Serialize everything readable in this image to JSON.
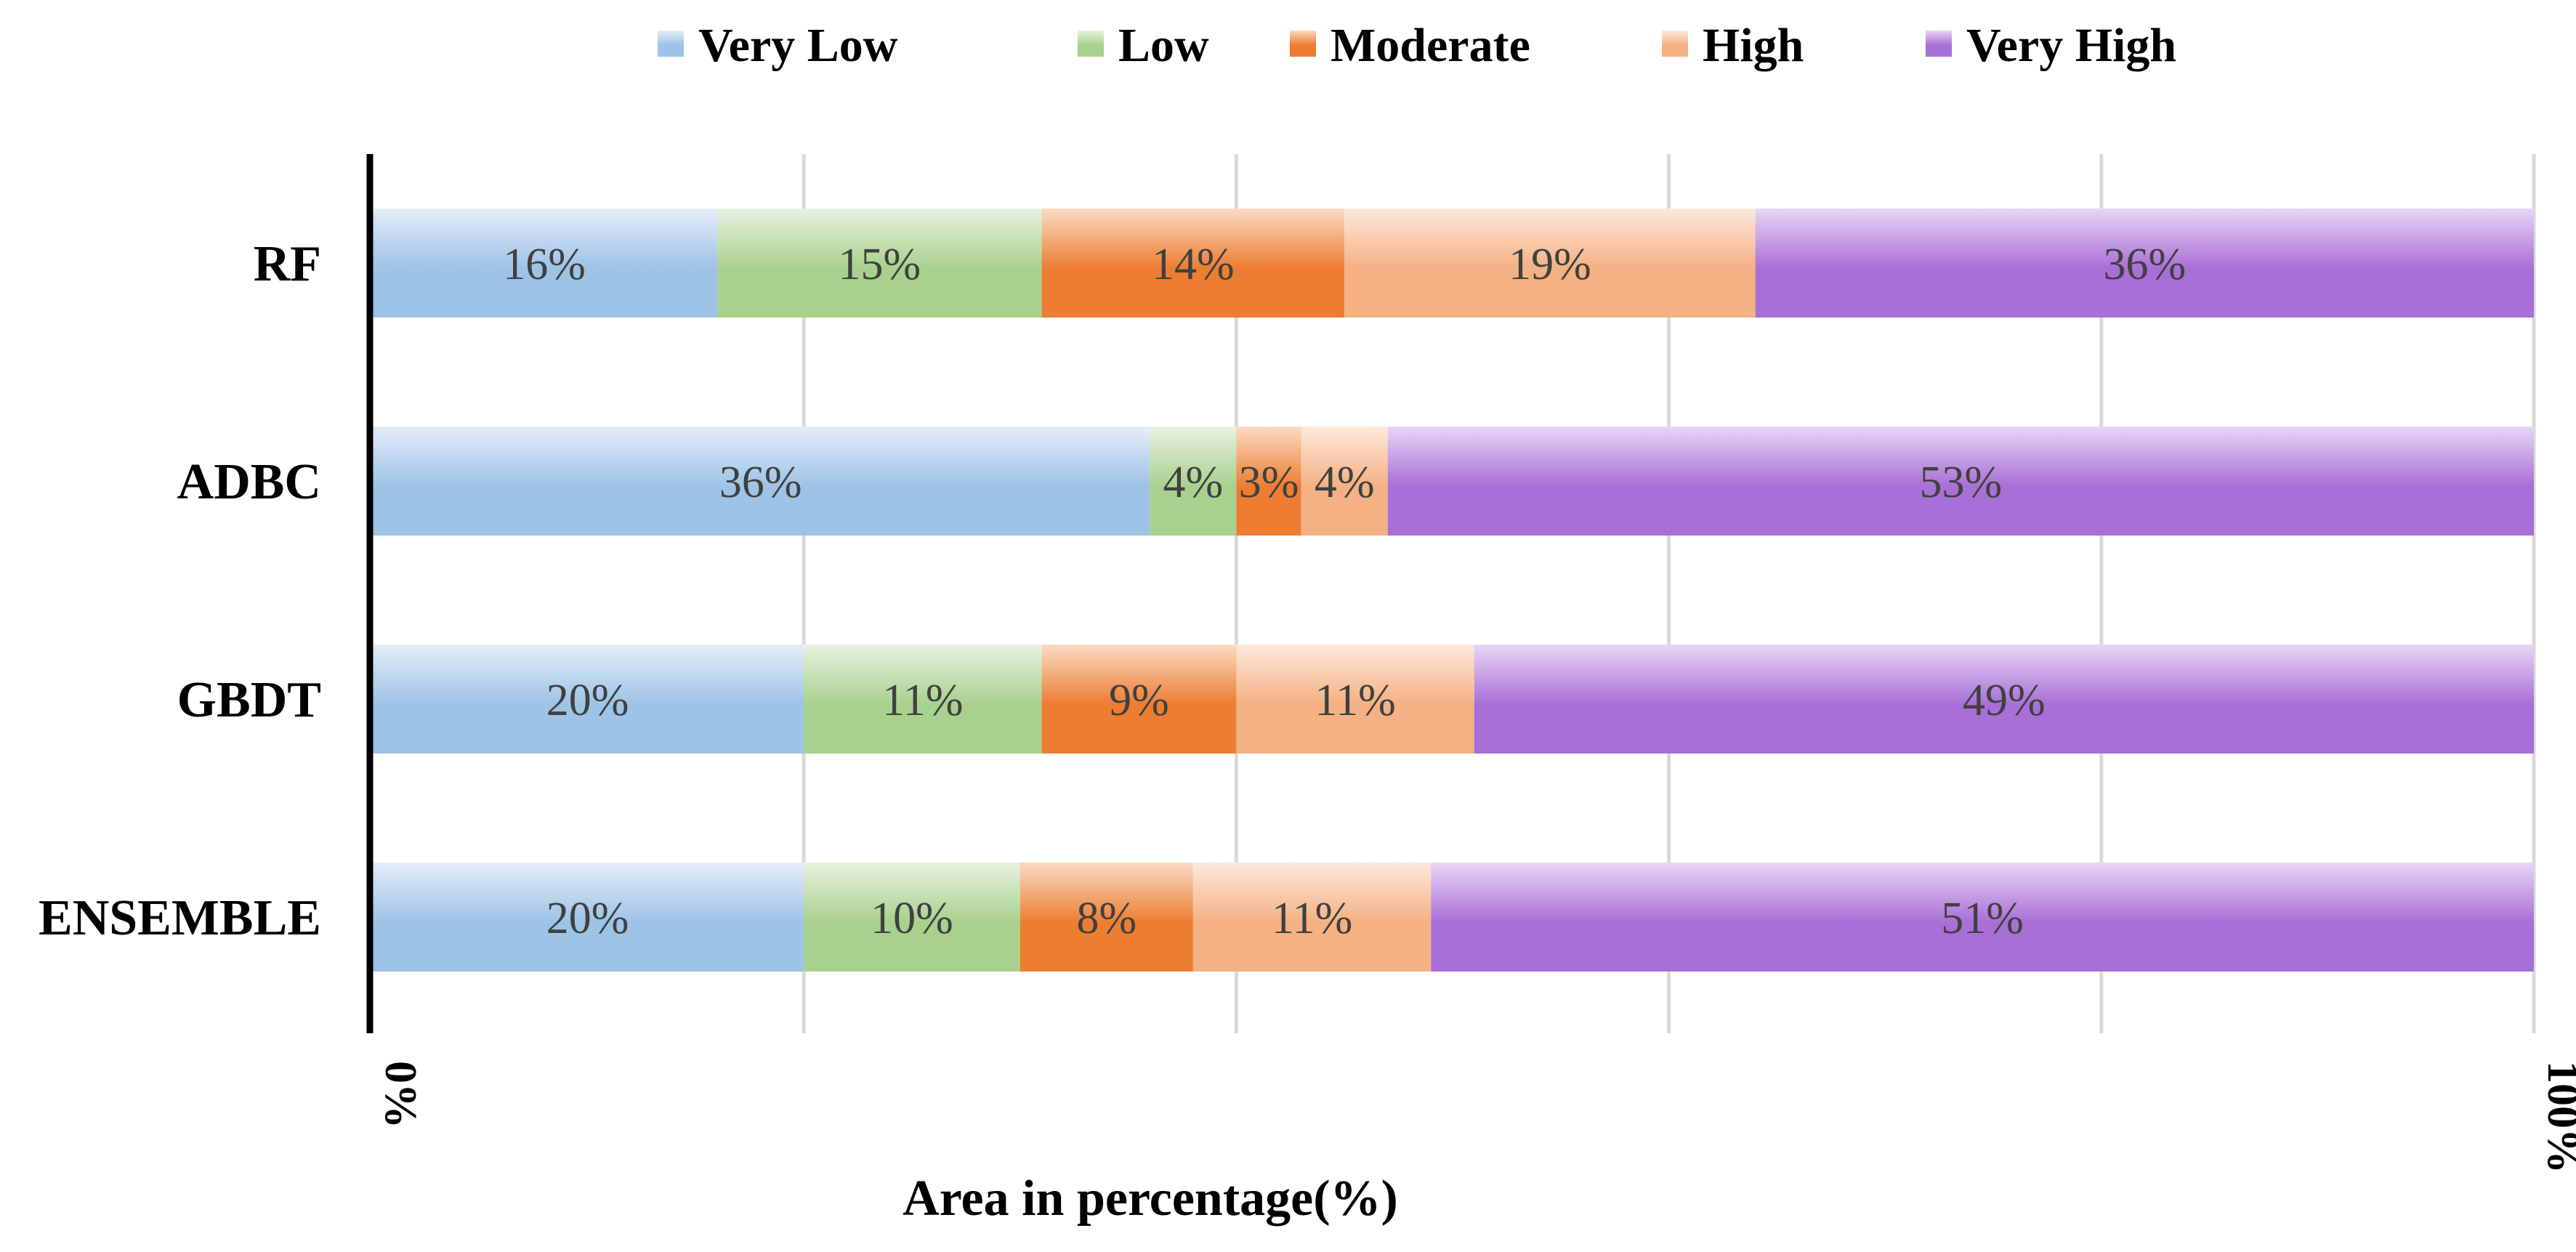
{
  "chart_data": {
    "type": "bar",
    "orientation": "horizontal",
    "stacked": "percent",
    "categories": [
      "RF",
      "ADBC",
      "GBDT",
      "ENSEMBLE"
    ],
    "series": [
      {
        "name": "Very Low",
        "color": "#9DC3E6",
        "values": [
          16,
          36,
          20,
          20
        ],
        "labels": [
          "16%",
          "36%",
          "20%",
          "20%"
        ]
      },
      {
        "name": "Low",
        "color": "#A9D18E",
        "values": [
          15,
          4,
          11,
          10
        ],
        "labels": [
          "15%",
          "4%",
          "11%",
          "10%"
        ]
      },
      {
        "name": "Moderate",
        "color": "#ED7D31",
        "values": [
          14,
          3,
          9,
          8
        ],
        "labels": [
          "14%",
          "3%",
          "9%",
          "8%"
        ]
      },
      {
        "name": "High",
        "color": "#F4B183",
        "values": [
          19,
          4,
          11,
          11
        ],
        "labels": [
          "19%",
          "4%",
          "11%",
          "11%"
        ]
      },
      {
        "name": "Very High",
        "color": "#A86FD6",
        "values": [
          36,
          53,
          49,
          51
        ],
        "labels": [
          "36%",
          "53%",
          "49%",
          "51%"
        ]
      }
    ],
    "xlabel": "Area in percentage(%)",
    "ylabel": "",
    "xlim": [
      0,
      100
    ],
    "x_ticks": [
      0,
      20,
      40,
      60,
      80,
      100
    ],
    "x_tick_labels": [
      "0%",
      "100%"
    ],
    "grid": true,
    "legend_position": "top"
  }
}
